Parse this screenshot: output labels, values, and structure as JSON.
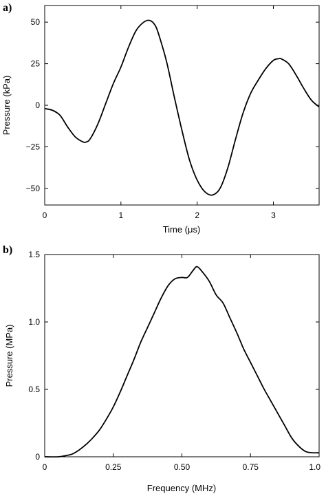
{
  "chart_data": [
    {
      "type": "line",
      "panel_label": "a)",
      "xlabel": "Time (μs)",
      "ylabel": "Pressure (kPa)",
      "xlim": [
        0,
        3.6
      ],
      "ylim": [
        -60,
        60
      ],
      "xticks": [
        0,
        1,
        2,
        3
      ],
      "xtick_labels": [
        "0",
        "1",
        "2",
        "3"
      ],
      "yticks": [
        50,
        25,
        0,
        -25,
        -50
      ],
      "ytick_labels": [
        "50",
        "25",
        "0",
        "−25",
        "−50"
      ],
      "grid": false,
      "series": [
        {
          "x": [
            0,
            0.1,
            0.2,
            0.3,
            0.4,
            0.5,
            0.55,
            0.6,
            0.7,
            0.8,
            0.9,
            1.0,
            1.1,
            1.2,
            1.3,
            1.38,
            1.45,
            1.5,
            1.6,
            1.7,
            1.8,
            1.9,
            2.0,
            2.1,
            2.2,
            2.3,
            2.4,
            2.5,
            2.6,
            2.7,
            2.8,
            2.9,
            3.0,
            3.07,
            3.1,
            3.2,
            3.3,
            3.4,
            3.5,
            3.6
          ],
          "y": [
            -2,
            -3,
            -6,
            -13,
            -19,
            -22,
            -22,
            -20,
            -11,
            1,
            13,
            23,
            35,
            45,
            50,
            51,
            48,
            42,
            26,
            5,
            -15,
            -33,
            -45,
            -52,
            -54,
            -50,
            -38,
            -21,
            -5,
            7,
            15,
            22,
            27,
            28,
            28,
            25,
            18,
            10,
            3,
            -1
          ]
        }
      ]
    },
    {
      "type": "line",
      "panel_label": "b)",
      "xlabel": "Frequency (MHz)",
      "ylabel": "Pressure (MPa)",
      "xlim": [
        0,
        1.0
      ],
      "ylim": [
        0,
        1.5
      ],
      "xticks": [
        0,
        0.25,
        0.5,
        0.75,
        1.0
      ],
      "xtick_labels": [
        "0",
        "0.25",
        "0.50",
        "0.75",
        "1.0"
      ],
      "yticks": [
        0,
        0.5,
        1.0,
        1.5
      ],
      "ytick_labels": [
        "0",
        "0.5",
        "1.0",
        "1.5"
      ],
      "grid": false,
      "series": [
        {
          "x": [
            0,
            0.05,
            0.08,
            0.1,
            0.125,
            0.15,
            0.175,
            0.2,
            0.225,
            0.25,
            0.275,
            0.3,
            0.325,
            0.35,
            0.375,
            0.4,
            0.425,
            0.45,
            0.475,
            0.5,
            0.52,
            0.54,
            0.555,
            0.575,
            0.6,
            0.625,
            0.65,
            0.675,
            0.7,
            0.725,
            0.75,
            0.775,
            0.8,
            0.825,
            0.85,
            0.875,
            0.9,
            0.925,
            0.95,
            0.975,
            1.0
          ],
          "y": [
            0,
            0.0,
            0.01,
            0.02,
            0.05,
            0.09,
            0.14,
            0.2,
            0.28,
            0.37,
            0.48,
            0.6,
            0.72,
            0.85,
            0.96,
            1.07,
            1.18,
            1.27,
            1.32,
            1.33,
            1.33,
            1.38,
            1.41,
            1.37,
            1.3,
            1.2,
            1.14,
            1.03,
            0.92,
            0.8,
            0.7,
            0.6,
            0.5,
            0.41,
            0.32,
            0.23,
            0.14,
            0.08,
            0.04,
            0.03,
            0.03
          ]
        }
      ]
    }
  ]
}
